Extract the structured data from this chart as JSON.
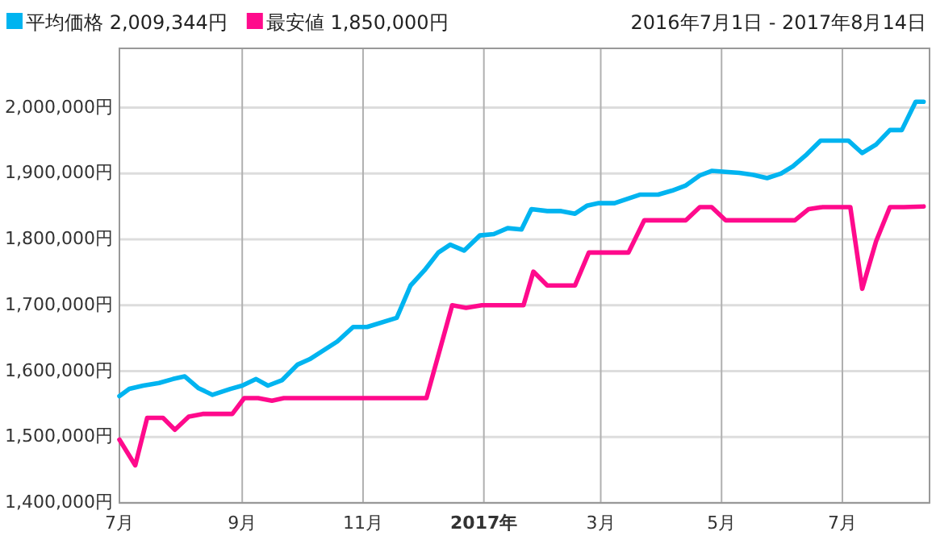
{
  "chart_data": {
    "type": "line",
    "legend": "top left",
    "grid": true,
    "marker": "none",
    "line_style": "solid",
    "annotations": [
      "2016年7月1日 - 2017年8月14日"
    ],
    "xlim": [
      "2016-07-01",
      "2017-08-14"
    ],
    "xticks": [
      {
        "value": "2016-07-01",
        "label": "7月"
      },
      {
        "value": "2016-09-01",
        "label": "9月"
      },
      {
        "value": "2016-11-01",
        "label": "11月"
      },
      {
        "value": "2017-01-01",
        "label": "2017年"
      },
      {
        "value": "2017-03-01",
        "label": "3月"
      },
      {
        "value": "2017-05-01",
        "label": "5月"
      },
      {
        "value": "2017-07-01",
        "label": "7月"
      }
    ],
    "ylim": [
      1400000,
      2090000
    ],
    "yticks": [
      {
        "value": 1400000,
        "label": "1,400,000円"
      },
      {
        "value": 1500000,
        "label": "1,500,000円"
      },
      {
        "value": 1600000,
        "label": "1,600,000円"
      },
      {
        "value": 1700000,
        "label": "1,700,000円"
      },
      {
        "value": 1800000,
        "label": "1,800,000円"
      },
      {
        "value": 1900000,
        "label": "1,900,000円"
      },
      {
        "value": 2000000,
        "label": "2,000,000円"
      }
    ],
    "series": [
      {
        "name": "平均価格 2,009,344円",
        "color": "#00b4f0",
        "x": [
          "2016-07-01",
          "2016-07-06",
          "2016-07-13",
          "2016-07-21",
          "2016-07-28",
          "2016-08-03",
          "2016-08-10",
          "2016-08-17",
          "2016-08-26",
          "2016-09-01",
          "2016-09-08",
          "2016-09-14",
          "2016-09-21",
          "2016-09-29",
          "2016-10-05",
          "2016-10-19",
          "2016-10-27",
          "2016-11-03",
          "2016-11-18",
          "2016-11-25",
          "2016-12-02",
          "2016-12-09",
          "2016-12-15",
          "2016-12-22",
          "2016-12-30",
          "2017-01-06",
          "2017-01-13",
          "2017-01-20",
          "2017-01-25",
          "2017-02-02",
          "2017-02-09",
          "2017-02-16",
          "2017-02-22",
          "2017-02-28",
          "2017-03-08",
          "2017-03-21",
          "2017-03-30",
          "2017-04-06",
          "2017-04-13",
          "2017-04-20",
          "2017-04-26",
          "2017-05-10",
          "2017-05-17",
          "2017-05-24",
          "2017-05-31",
          "2017-06-06",
          "2017-06-13",
          "2017-06-20",
          "2017-06-27",
          "2017-07-04",
          "2017-07-11",
          "2017-07-18",
          "2017-07-25",
          "2017-07-31",
          "2017-08-07",
          "2017-08-11"
        ],
        "values": [
          1562000,
          1573000,
          1578000,
          1582000,
          1588000,
          1592000,
          1574000,
          1564000,
          1573000,
          1578000,
          1588000,
          1578000,
          1586000,
          1610000,
          1618000,
          1645000,
          1667000,
          1667000,
          1681000,
          1730000,
          1753000,
          1780000,
          1792000,
          1783000,
          1806000,
          1808000,
          1817000,
          1815000,
          1846000,
          1843000,
          1843000,
          1839000,
          1851000,
          1855000,
          1855000,
          1868000,
          1868000,
          1874000,
          1882000,
          1897000,
          1904000,
          1901000,
          1898000,
          1893000,
          1900000,
          1911000,
          1929000,
          1950000,
          1950000,
          1950000,
          1931000,
          1944000,
          1966000,
          1966000,
          2009000,
          2009000
        ]
      },
      {
        "name": "最安値 1,850,000円",
        "color": "#ff0a8c",
        "x": [
          "2016-07-01",
          "2016-07-09",
          "2016-07-15",
          "2016-07-23",
          "2016-07-29",
          "2016-08-05",
          "2016-08-12",
          "2016-08-27",
          "2016-09-02",
          "2016-09-09",
          "2016-09-16",
          "2016-09-22",
          "2016-12-03",
          "2016-12-16",
          "2016-12-23",
          "2016-12-31",
          "2017-01-21",
          "2017-01-26",
          "2017-02-02",
          "2017-02-16",
          "2017-02-23",
          "2017-03-15",
          "2017-03-23",
          "2017-04-13",
          "2017-04-20",
          "2017-04-26",
          "2017-05-03",
          "2017-06-07",
          "2017-06-14",
          "2017-06-21",
          "2017-07-05",
          "2017-07-11",
          "2017-07-18",
          "2017-07-25",
          "2017-08-01",
          "2017-08-11"
        ],
        "values": [
          1496000,
          1457000,
          1529000,
          1529000,
          1511000,
          1531000,
          1535000,
          1535000,
          1559000,
          1559000,
          1555000,
          1559000,
          1559000,
          1700000,
          1696000,
          1700000,
          1700000,
          1751000,
          1730000,
          1730000,
          1780000,
          1780000,
          1829000,
          1829000,
          1849000,
          1849000,
          1829000,
          1829000,
          1846000,
          1849000,
          1849000,
          1725000,
          1797000,
          1849000,
          1849000,
          1850000
        ]
      }
    ]
  }
}
